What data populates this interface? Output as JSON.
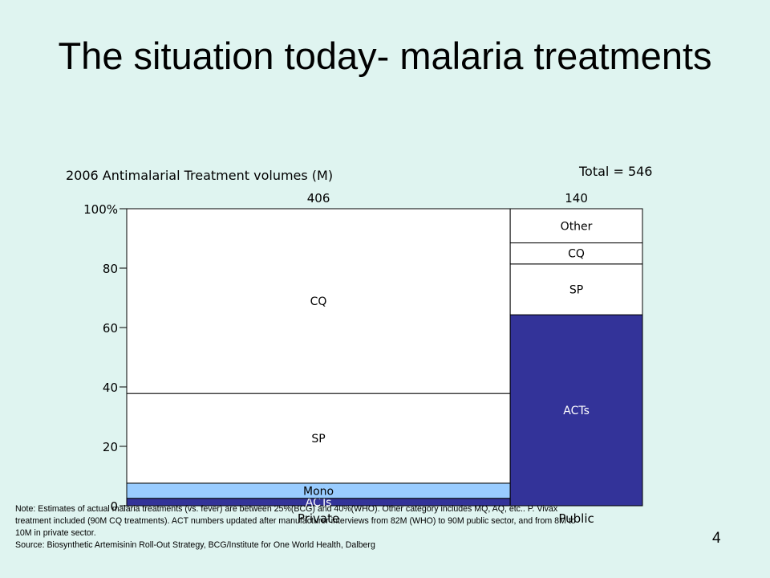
{
  "slide": {
    "title": "The situation today- malaria treatments",
    "page_number": "4",
    "note_lines": [
      "Note:  Estimates of actual malaria treatments (vs. fever) are between 25%(BCG) and 40%(WHO).  Other category includes MQ, AQ, etc.. P. Vivax",
      "treatment included (90M CQ treatments).  ACT numbers updated after manufacturer interviews from 82M (WHO)  to 90M public sector, and from 8M to",
      "10M in private sector.",
      "Source: Biosynthetic Artemisinin Roll-Out Strategy, BCG/Institute for One World Health, Dalberg"
    ]
  },
  "chart_data": {
    "type": "bar",
    "subtype": "mekko-100-stacked",
    "title": "2006 Antimalarial Treatment volumes (M)",
    "total_label": "Total = 546",
    "categories": [
      "Private",
      "Public"
    ],
    "widths": [
      406,
      140
    ],
    "width_labels": [
      "406",
      "140"
    ],
    "yticks": [
      "0",
      "20",
      "40",
      "60",
      "80",
      "100%"
    ],
    "ylim": [
      0,
      100
    ],
    "series": [
      {
        "name": "ACTs",
        "values": [
          2.5,
          64.3
        ],
        "color": "#333399"
      },
      {
        "name": "Mono",
        "values": [
          5.1,
          0
        ],
        "color": "#99ccff"
      },
      {
        "name": "SP",
        "values": [
          30.2,
          17.1
        ],
        "color": "#ffffff"
      },
      {
        "name": "CQ",
        "values": [
          62.2,
          7.1
        ],
        "color": "#ffffff"
      },
      {
        "name": "Other",
        "values": [
          0,
          11.5
        ],
        "color": "#ffffff"
      }
    ]
  }
}
